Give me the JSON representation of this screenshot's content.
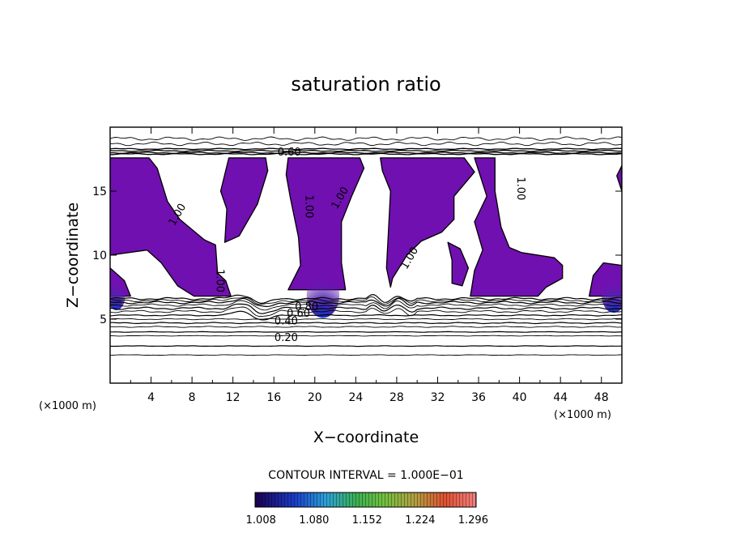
{
  "chart_data": {
    "type": "heatmap",
    "title": "saturation ratio",
    "xlabel": "X−coordinate",
    "ylabel": "Z−coordinate",
    "x_unit": "(×1000 m)",
    "x_unit_right": "(×1000 m)",
    "xlim": [
      0,
      50
    ],
    "ylim": [
      0,
      20
    ],
    "xticks": [
      4,
      8,
      12,
      16,
      20,
      24,
      28,
      32,
      36,
      40,
      44,
      48
    ],
    "yticks": [
      5,
      10,
      15
    ],
    "contour_interval_text": "CONTOUR INTERVAL = 1.000E−01",
    "contour_labels": [
      {
        "text": "0.60",
        "x": 17.5,
        "y": 18.1
      },
      {
        "text": "1.00",
        "x": 6.5,
        "y": 13.2
      },
      {
        "text": "1.00",
        "x": 19.5,
        "y": 13.8
      },
      {
        "text": "1.00",
        "x": 22.4,
        "y": 14.5
      },
      {
        "text": "1.00",
        "x": 10.8,
        "y": 8.0
      },
      {
        "text": "1.00",
        "x": 29.2,
        "y": 9.8
      },
      {
        "text": "1.00",
        "x": 40.2,
        "y": 15.2
      },
      {
        "text": "0.80",
        "x": 19.2,
        "y": 6.0
      },
      {
        "text": "0.60",
        "x": 18.4,
        "y": 5.5
      },
      {
        "text": "0.40",
        "x": 17.2,
        "y": 4.9
      },
      {
        "text": "0.20",
        "x": 17.2,
        "y": 3.6
      }
    ],
    "colorbar": {
      "ticks": [
        "1.008",
        "1.080",
        "1.152",
        "1.224",
        "1.296"
      ],
      "range": [
        1.0,
        1.3
      ]
    },
    "supersaturated_regions": [
      [
        [
          0,
          17.6
        ],
        [
          3.8,
          17.6
        ],
        [
          4.6,
          16.8
        ],
        [
          5.6,
          14.2
        ],
        [
          6.8,
          12.8
        ],
        [
          9.2,
          11.2
        ],
        [
          10.3,
          10.8
        ],
        [
          10.5,
          8.6
        ],
        [
          11.3,
          8.0
        ],
        [
          11.8,
          6.8
        ],
        [
          8.2,
          6.8
        ],
        [
          6.6,
          7.6
        ],
        [
          5.0,
          9.4
        ],
        [
          3.6,
          10.4
        ],
        [
          0,
          10.0
        ]
      ],
      [
        [
          11.6,
          17.6
        ],
        [
          15.2,
          17.6
        ],
        [
          15.4,
          16.6
        ],
        [
          14.4,
          14.0
        ],
        [
          12.6,
          11.5
        ],
        [
          11.2,
          11.0
        ],
        [
          11.4,
          13.6
        ],
        [
          10.8,
          15.0
        ]
      ],
      [
        [
          17.4,
          17.6
        ],
        [
          24.4,
          17.6
        ],
        [
          24.8,
          16.8
        ],
        [
          23.6,
          14.6
        ],
        [
          22.6,
          12.6
        ],
        [
          22.6,
          9.4
        ],
        [
          23.0,
          7.3
        ],
        [
          17.4,
          7.3
        ],
        [
          18.6,
          9.2
        ],
        [
          18.4,
          11.4
        ],
        [
          17.6,
          14.5
        ],
        [
          17.2,
          16.3
        ]
      ],
      [
        [
          26.4,
          17.6
        ],
        [
          34.6,
          17.6
        ],
        [
          35.6,
          16.5
        ],
        [
          33.6,
          14.6
        ],
        [
          33.6,
          12.8
        ],
        [
          32.4,
          11.8
        ],
        [
          30.4,
          11.1
        ],
        [
          29.0,
          10.0
        ],
        [
          27.6,
          8.2
        ],
        [
          27.4,
          7.5
        ],
        [
          27.0,
          9.0
        ],
        [
          27.2,
          12.0
        ],
        [
          27.4,
          15.0
        ],
        [
          26.6,
          16.6
        ]
      ],
      [
        [
          35.6,
          17.6
        ],
        [
          37.6,
          17.6
        ],
        [
          37.6,
          15.0
        ],
        [
          38.2,
          12.2
        ],
        [
          39.0,
          10.6
        ],
        [
          40.2,
          10.2
        ],
        [
          43.4,
          9.8
        ],
        [
          44.2,
          9.2
        ],
        [
          44.2,
          8.2
        ],
        [
          42.6,
          7.5
        ],
        [
          41.8,
          6.8
        ],
        [
          35.2,
          6.8
        ],
        [
          35.6,
          8.8
        ],
        [
          36.4,
          10.4
        ],
        [
          35.6,
          12.6
        ],
        [
          36.8,
          14.6
        ]
      ],
      [
        [
          33.0,
          11.0
        ],
        [
          34.2,
          10.5
        ],
        [
          35.0,
          9.0
        ],
        [
          34.4,
          7.6
        ],
        [
          33.4,
          7.8
        ],
        [
          33.4,
          9.6
        ]
      ],
      [
        [
          50,
          17.0
        ],
        [
          49.5,
          16.2
        ],
        [
          50,
          15.0
        ]
      ],
      [
        [
          50,
          9.2
        ],
        [
          48.2,
          9.4
        ],
        [
          47.2,
          8.4
        ],
        [
          46.8,
          6.8
        ],
        [
          50,
          6.8
        ]
      ],
      [
        [
          0,
          9.0
        ],
        [
          1.4,
          8.0
        ],
        [
          2.0,
          6.8
        ],
        [
          0,
          6.8
        ]
      ]
    ],
    "moist_cores": [
      {
        "x": 20.8,
        "y": 6.9,
        "rx": 1.6,
        "ry": 1.8
      },
      {
        "x": 49.2,
        "y": 6.9,
        "rx": 1.2,
        "ry": 1.4
      },
      {
        "x": 0.6,
        "y": 6.9,
        "rx": 0.9,
        "ry": 1.2
      }
    ],
    "contour_levels_y": [
      6.6,
      6.45,
      6.3,
      6.1,
      5.85,
      5.6,
      5.3,
      5.0,
      4.7,
      4.4,
      4.0,
      3.7,
      2.9,
      2.2
    ],
    "upper_contours_y": [
      18.3,
      18.15,
      18.0,
      17.9
    ],
    "top_contours_y": [
      19.1,
      18.7
    ]
  }
}
